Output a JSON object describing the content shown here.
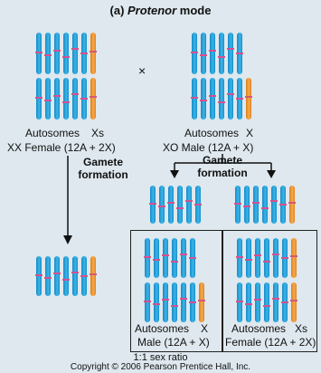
{
  "title_prefix": "(a) ",
  "title_italic": "Protenor",
  "title_suffix": " mode",
  "cross_symbol": "×",
  "female": {
    "label_autosomes": "Autosomes",
    "label_sex": "Xs",
    "caption": "XX Female (12A + 2X)"
  },
  "male": {
    "label_autosomes": "Autosomes",
    "label_sex": "X",
    "caption": "XO Male (12A + X)"
  },
  "gamete_formation_left": "Gamete\nformation",
  "gamete_formation_right": "Gamete\nformation",
  "offspring_male": {
    "label_autosomes": "Autosomes",
    "label_sex": "X",
    "caption": "Male (12A + X)"
  },
  "offspring_female": {
    "label_autosomes": "Autosomes",
    "label_sex": "Xs",
    "caption": "Female (12A + 2X)"
  },
  "ratio": "1:1 sex ratio",
  "copyright": "Copyright © 2006 Pearson Prentice Hall, Inc.",
  "colors": {
    "autosome": "#2aa3dc",
    "x_chromosome": "#f09a36",
    "centromere": "#d7508e",
    "background": "#dee8ee"
  }
}
